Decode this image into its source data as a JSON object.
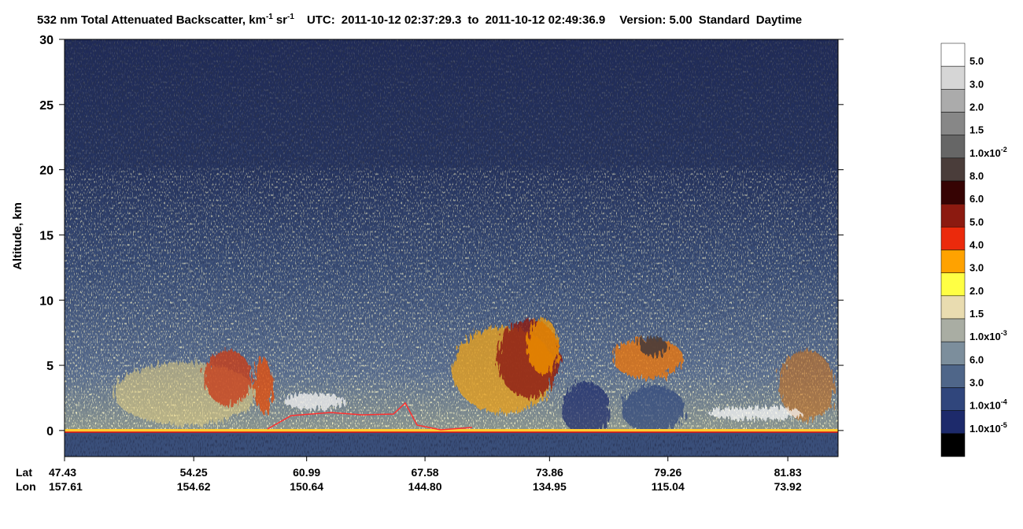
{
  "chart_data": {
    "type": "heatmap",
    "title": {
      "main": "532 nm Total Attenuated Backscatter, km",
      "exp1": "-1",
      "unit": "sr",
      "exp2": "-1",
      "utc": "UTC:",
      "start": "2011-10-12 02:37:29.3",
      "to": "to",
      "end": "2011-10-12 02:49:36.9",
      "version": "Version: 5.00",
      "product": "Standard",
      "daytime": "Daytime"
    },
    "ylabel": "Altitude, km",
    "ylim": [
      -2,
      30
    ],
    "yticks": [
      0,
      5,
      10,
      15,
      20,
      25,
      30
    ],
    "x_rows": [
      {
        "name": "Lat",
        "labels": [
          "47.43",
          "54.25",
          "60.99",
          "67.58",
          "73.86",
          "79.26",
          "81.83"
        ]
      },
      {
        "name": "Lon",
        "labels": [
          "157.61",
          "154.62",
          "150.64",
          "144.80",
          "134.95",
          "115.04",
          "73.92"
        ]
      }
    ],
    "colorbar": {
      "colors": [
        "#ffffff",
        "#d6d6d6",
        "#ababab",
        "#878787",
        "#666666",
        "#4a3d3a",
        "#360303",
        "#8c1a10",
        "#eb2a0c",
        "#ffa200",
        "#ffff44",
        "#e9dcb0",
        "#a9ada3",
        "#7c8e9c",
        "#4f6689",
        "#30467c",
        "#1d2a6b",
        "#000000"
      ],
      "labels": [
        {
          "base": "5.0"
        },
        {
          "base": "3.0"
        },
        {
          "base": "2.0"
        },
        {
          "base": "1.5"
        },
        {
          "base": "1.0x10",
          "exp": "-2"
        },
        {
          "base": "8.0"
        },
        {
          "base": "6.0"
        },
        {
          "base": "5.0"
        },
        {
          "base": "4.0"
        },
        {
          "base": "3.0"
        },
        {
          "base": "2.0"
        },
        {
          "base": "1.5"
        },
        {
          "base": "1.0x10",
          "exp": "-3"
        },
        {
          "base": "6.0"
        },
        {
          "base": "3.0"
        },
        {
          "base": "1.0x10",
          "exp": "-4"
        },
        {
          "base": "1.0x10",
          "exp": "-5"
        }
      ]
    }
  }
}
